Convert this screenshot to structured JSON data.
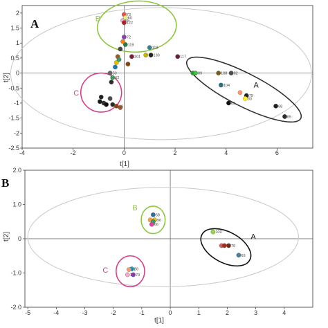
{
  "chart_data": [
    {
      "type": "scatter",
      "panel_label": "A",
      "xlabel": "t[1]",
      "ylabel": "t[2]",
      "xlim": [
        -4,
        7.4
      ],
      "ylim": [
        -2.5,
        2.25
      ],
      "xticks": [
        -4,
        -2,
        0,
        2,
        4,
        6
      ],
      "yticks": [
        -2.5,
        -2,
        -1.5,
        -1,
        -0.5,
        0,
        0.5,
        1,
        1.5,
        2
      ],
      "grid": false,
      "zero_lines": true,
      "groups": [
        {
          "name": "A",
          "color": "#333333",
          "ellipse": {
            "cx": 4.7,
            "cy": -0.55,
            "rx": 2.5,
            "ry": 0.55,
            "angle_deg": 27
          }
        },
        {
          "name": "B",
          "color": "#8cc63f",
          "ellipse": {
            "cx": 0.5,
            "cy": 1.55,
            "rx": 1.55,
            "ry": 0.85,
            "angle_deg": -3
          }
        },
        {
          "name": "C",
          "color": "#d6408b",
          "ellipse": {
            "cx": -0.9,
            "cy": -0.65,
            "rx": 0.8,
            "ry": 0.65,
            "angle_deg": 0
          }
        }
      ],
      "hotelling_ellipse": {
        "cx": 1.45,
        "cy": -0.02,
        "rx": 5.9,
        "ry": 2.2
      },
      "points": [
        {
          "x": 2.7,
          "y": 0.0,
          "color": "#2e9a35",
          "label": ""
        },
        {
          "x": 2.8,
          "y": 0.0,
          "color": "#3fbf3f",
          "label": "89"
        },
        {
          "x": 3.7,
          "y": 0.0,
          "color": "#7a5a10",
          "label": "108"
        },
        {
          "x": 4.2,
          "y": 0.0,
          "color": "#4d4d4d",
          "label": "82"
        },
        {
          "x": 3.8,
          "y": -0.4,
          "color": "#2f6e88",
          "label": "104"
        },
        {
          "x": 4.55,
          "y": -0.65,
          "color": "#ff9a6a",
          "label": ""
        },
        {
          "x": 4.8,
          "y": -0.75,
          "color": "#222222",
          "label": "79"
        },
        {
          "x": 4.75,
          "y": -0.85,
          "color": "#ffee22",
          "label": "30"
        },
        {
          "x": 4.1,
          "y": -1.0,
          "color": "#111111",
          "label": "63"
        },
        {
          "x": 5.95,
          "y": -1.1,
          "color": "#1f1f1f",
          "label": "68"
        },
        {
          "x": 6.3,
          "y": -1.45,
          "color": "#2b2b2b",
          "label": "65"
        },
        {
          "x": 2.1,
          "y": 0.55,
          "color": "#6b1f3a",
          "label": "117"
        },
        {
          "x": 1.0,
          "y": 0.85,
          "color": "#3a7f8f",
          "label": "118"
        },
        {
          "x": 1.05,
          "y": 0.6,
          "color": "#222222",
          "label": "130"
        },
        {
          "x": 0.85,
          "y": 0.6,
          "color": "#c8b400",
          "label": ""
        },
        {
          "x": 0.3,
          "y": 0.55,
          "color": "#7a1f2f",
          "label": "101"
        },
        {
          "x": 0.05,
          "y": 0.95,
          "color": "#2a7a3f",
          "label": "119"
        },
        {
          "x": 0.0,
          "y": 1.2,
          "color": "#8e3fbf",
          "label": "72"
        },
        {
          "x": -0.05,
          "y": 1.05,
          "color": "#ff7f0e",
          "label": ""
        },
        {
          "x": 0.0,
          "y": 1.95,
          "color": "#f04a4a",
          "label": "73"
        },
        {
          "x": 0.05,
          "y": 1.85,
          "color": "#f0f07a",
          "label": "60"
        },
        {
          "x": -0.05,
          "y": 1.75,
          "color": "#f5a9c9",
          "label": "65"
        },
        {
          "x": 0.0,
          "y": 1.68,
          "color": "#b22222",
          "label": "122"
        },
        {
          "x": -0.15,
          "y": 0.8,
          "color": "#444444",
          "label": ""
        },
        {
          "x": -0.25,
          "y": 0.55,
          "color": "#9e5a1a",
          "label": ""
        },
        {
          "x": -0.3,
          "y": 0.35,
          "color": "#e0c000",
          "label": ""
        },
        {
          "x": -0.2,
          "y": 0.45,
          "color": "#3d9970",
          "label": ""
        },
        {
          "x": -0.35,
          "y": 0.2,
          "color": "#1f77b4",
          "label": ""
        },
        {
          "x": 0.15,
          "y": 0.3,
          "color": "#8b4513",
          "label": ""
        },
        {
          "x": -0.55,
          "y": 0.0,
          "color": "#666666",
          "label": "50"
        },
        {
          "x": -0.45,
          "y": -0.15,
          "color": "#3a9a5a",
          "label": "62"
        },
        {
          "x": -0.5,
          "y": -0.3,
          "color": "#2f2f2f",
          "label": ""
        },
        {
          "x": -0.9,
          "y": -0.8,
          "color": "#222222",
          "label": ""
        },
        {
          "x": -0.95,
          "y": -0.95,
          "color": "#1a1a1a",
          "label": ""
        },
        {
          "x": -0.8,
          "y": -1.0,
          "color": "#333333",
          "label": ""
        },
        {
          "x": -0.7,
          "y": -1.05,
          "color": "#111111",
          "label": ""
        },
        {
          "x": -0.55,
          "y": -0.85,
          "color": "#4a4a4a",
          "label": ""
        },
        {
          "x": -0.45,
          "y": -1.05,
          "color": "#2a2a2a",
          "label": ""
        },
        {
          "x": -0.3,
          "y": -1.1,
          "color": "#8b4513",
          "label": "69"
        },
        {
          "x": -0.15,
          "y": -1.15,
          "color": "#a0522d",
          "label": ""
        }
      ]
    },
    {
      "type": "scatter",
      "panel_label": "B",
      "xlabel": "t[1]",
      "ylabel": "t[2]",
      "xlim": [
        -5.1,
        5
      ],
      "ylim": [
        -2.0,
        2.0
      ],
      "xticks": [
        -5,
        -4,
        -3,
        -2,
        -1,
        0,
        1,
        2,
        3,
        4
      ],
      "yticks": [
        -2.0,
        -1.0,
        0,
        1.0,
        2.0
      ],
      "grid": false,
      "zero_lines": true,
      "groups": [
        {
          "name": "A",
          "color": "#111111",
          "ellipse": {
            "cx": 1.95,
            "cy": -0.25,
            "rx": 0.95,
            "ry": 0.45,
            "angle_deg": 28
          }
        },
        {
          "name": "B",
          "color": "#8cc63f",
          "ellipse": {
            "cx": -0.6,
            "cy": 0.55,
            "rx": 0.42,
            "ry": 0.4,
            "angle_deg": 0
          }
        },
        {
          "name": "C",
          "color": "#d6408b",
          "ellipse": {
            "cx": -1.4,
            "cy": -0.95,
            "rx": 0.5,
            "ry": 0.45,
            "angle_deg": 0
          }
        }
      ],
      "hotelling_ellipse": {
        "cx": -0.25,
        "cy": 0.05,
        "rx": 4.75,
        "ry": 1.45
      },
      "points": [
        {
          "x": 1.5,
          "y": 0.2,
          "color": "#8cd63f",
          "label": "109"
        },
        {
          "x": 1.8,
          "y": -0.2,
          "color": "#d35b5b",
          "label": "74"
        },
        {
          "x": 1.9,
          "y": -0.2,
          "color": "#a0301e",
          "label": ""
        },
        {
          "x": 2.05,
          "y": -0.2,
          "color": "#6b2a20",
          "label": "79"
        },
        {
          "x": 2.4,
          "y": -0.48,
          "color": "#4a7f9a",
          "label": "69"
        },
        {
          "x": -0.6,
          "y": 0.7,
          "color": "#2f6f9f",
          "label": "58"
        },
        {
          "x": -0.7,
          "y": 0.55,
          "color": "#ff9a3a",
          "label": "83"
        },
        {
          "x": -0.55,
          "y": 0.55,
          "color": "#e0c000",
          "label": "96"
        },
        {
          "x": -0.6,
          "y": 0.5,
          "color": "#3d9970",
          "label": ""
        },
        {
          "x": -0.65,
          "y": 0.42,
          "color": "#e040a0",
          "label": "66"
        },
        {
          "x": -1.35,
          "y": -0.88,
          "color": "#1f9fdf",
          "label": "58"
        },
        {
          "x": -1.45,
          "y": -0.9,
          "color": "#f0a070",
          "label": "77"
        },
        {
          "x": -1.3,
          "y": -1.05,
          "color": "#8e3fbf",
          "label": "79"
        },
        {
          "x": -1.5,
          "y": -1.05,
          "color": "#f5a9c9",
          "label": "17"
        }
      ]
    }
  ]
}
